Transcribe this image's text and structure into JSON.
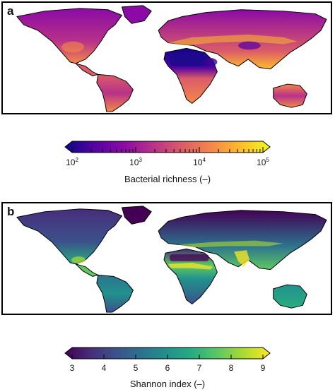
{
  "panels": [
    {
      "letter": "a",
      "variable": "bacterial-richness",
      "scale": "log",
      "colormap": "plasma",
      "colorbar": {
        "title": "Bacterial richness (–)",
        "range": [
          100,
          100000
        ],
        "ticks": [
          {
            "base": "10",
            "exp": "2"
          },
          {
            "base": "10",
            "exp": "3"
          },
          {
            "base": "10",
            "exp": "4"
          },
          {
            "base": "10",
            "exp": "5"
          }
        ],
        "colors": [
          "#0d0887",
          "#5302a3",
          "#8b0aa5",
          "#b83289",
          "#db5c68",
          "#f48849",
          "#febc2a",
          "#f0f921"
        ]
      }
    },
    {
      "letter": "b",
      "variable": "shannon-index",
      "scale": "linear",
      "colormap": "viridis",
      "colorbar": {
        "title": "Shannon index (–)",
        "range": [
          3,
          9
        ],
        "ticks": [
          "3",
          "4",
          "5",
          "6",
          "7",
          "8",
          "9"
        ],
        "colors": [
          "#440154",
          "#472d7b",
          "#3b528b",
          "#2c728e",
          "#21918c",
          "#28ae80",
          "#5ec962",
          "#addc30",
          "#fde725"
        ]
      }
    }
  ]
}
